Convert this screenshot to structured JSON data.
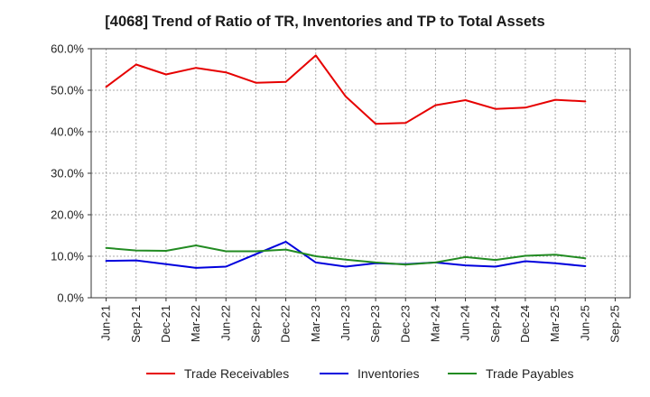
{
  "chart_data": {
    "type": "line",
    "title": "[4068]  Trend of Ratio of TR, Inventories and TP to Total Assets",
    "xlabel": "",
    "ylabel": "",
    "x_ticks": [
      "Jun-21",
      "Sep-21",
      "Dec-21",
      "Mar-22",
      "Jun-22",
      "Sep-22",
      "Dec-22",
      "Mar-23",
      "Jun-23",
      "Sep-23",
      "Dec-23",
      "Mar-24",
      "Jun-24",
      "Sep-24",
      "Dec-24",
      "Mar-25",
      "Jun-25",
      "Sep-25"
    ],
    "x": [
      "Jun-21",
      "Sep-21",
      "Dec-21",
      "Mar-22",
      "Jun-22",
      "Sep-22",
      "Dec-22",
      "Mar-23",
      "Jun-23",
      "Sep-23",
      "Dec-23",
      "Mar-24",
      "Jun-24",
      "Sep-24",
      "Dec-24",
      "Mar-25",
      "Jun-25"
    ],
    "y_ticks": [
      "0.0%",
      "10.0%",
      "20.0%",
      "30.0%",
      "40.0%",
      "50.0%",
      "60.0%"
    ],
    "ylim": [
      0,
      60
    ],
    "grid": true,
    "legend_position": "bottom",
    "series": [
      {
        "name": "Trade Receivables",
        "color": "#e60000",
        "values": [
          50.8,
          56.2,
          53.8,
          55.4,
          54.3,
          51.8,
          52.0,
          58.4,
          48.5,
          41.9,
          42.1,
          46.4,
          47.6,
          45.5,
          45.8,
          47.7,
          47.3
        ]
      },
      {
        "name": "Inventories",
        "color": "#0000dd",
        "values": [
          8.9,
          9.0,
          8.1,
          7.2,
          7.5,
          10.5,
          13.5,
          8.5,
          7.5,
          8.3,
          8.1,
          8.5,
          7.8,
          7.5,
          8.8,
          8.3,
          7.6
        ]
      },
      {
        "name": "Trade Payables",
        "color": "#228b22",
        "values": [
          12.0,
          11.4,
          11.3,
          12.6,
          11.2,
          11.2,
          11.6,
          10.0,
          9.2,
          8.5,
          8.0,
          8.5,
          9.8,
          9.1,
          10.1,
          10.4,
          9.5
        ]
      }
    ]
  }
}
